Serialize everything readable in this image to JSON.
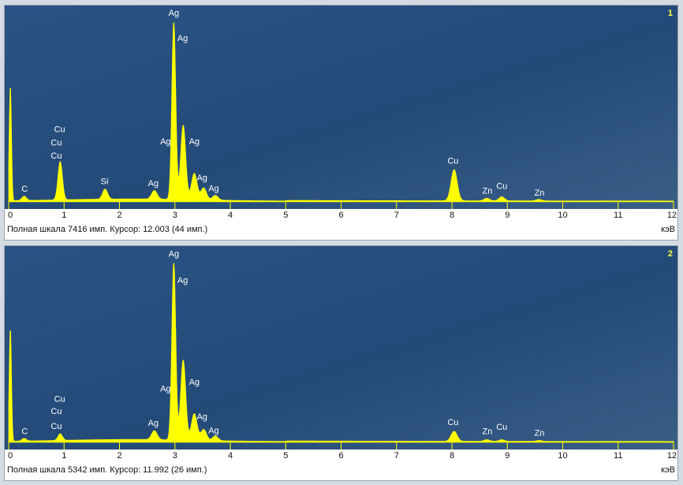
{
  "chart_data": [
    {
      "type": "line",
      "spectrum_number": "1",
      "status_text": "Полная шкала 7416 имп. Курсор: 12.003  (44 имп.)",
      "unit_label": "кэВ",
      "xlim": [
        0,
        12
      ],
      "x_ticks": [
        "0",
        "1",
        "2",
        "3",
        "4",
        "5",
        "6",
        "7",
        "8",
        "9",
        "10",
        "11",
        "12"
      ],
      "ylim": [
        0,
        7416
      ],
      "background_color": "#244a78",
      "fill_color": "#ffff00",
      "peaks": [
        {
          "x": 0.03,
          "y": 4800,
          "w": 0.02
        },
        {
          "x": 0.28,
          "y": 180,
          "w": 0.04
        },
        {
          "x": 0.93,
          "y": 1600,
          "w": 0.04
        },
        {
          "x": 1.74,
          "y": 420,
          "w": 0.045
        },
        {
          "x": 2.63,
          "y": 360,
          "w": 0.05
        },
        {
          "x": 2.98,
          "y": 7416,
          "w": 0.035
        },
        {
          "x": 3.15,
          "y": 3100,
          "w": 0.045
        },
        {
          "x": 3.35,
          "y": 1100,
          "w": 0.05
        },
        {
          "x": 3.52,
          "y": 500,
          "w": 0.05
        },
        {
          "x": 3.73,
          "y": 200,
          "w": 0.05
        },
        {
          "x": 8.04,
          "y": 1300,
          "w": 0.055
        },
        {
          "x": 8.63,
          "y": 110,
          "w": 0.05
        },
        {
          "x": 8.9,
          "y": 170,
          "w": 0.05
        },
        {
          "x": 9.57,
          "y": 60,
          "w": 0.05
        }
      ],
      "labels": [
        {
          "text": "Ag",
          "x": 2.98,
          "y": 7650
        },
        {
          "text": "Ag",
          "x": 3.14,
          "y": 6600
        },
        {
          "text": "Ag",
          "x": 2.83,
          "y": 2300
        },
        {
          "text": "Ag",
          "x": 3.35,
          "y": 2300
        },
        {
          "text": "Ag",
          "x": 3.49,
          "y": 780
        },
        {
          "text": "Ag",
          "x": 3.7,
          "y": 350
        },
        {
          "text": "Ag",
          "x": 2.61,
          "y": 560
        },
        {
          "text": "Cu",
          "x": 0.92,
          "y": 2800
        },
        {
          "text": "Cu",
          "x": 0.86,
          "y": 2250
        },
        {
          "text": "Cu",
          "x": 0.86,
          "y": 1700
        },
        {
          "text": "C",
          "x": 0.29,
          "y": 330
        },
        {
          "text": "Si",
          "x": 1.73,
          "y": 640
        },
        {
          "text": "Cu",
          "x": 8.02,
          "y": 1500
        },
        {
          "text": "Zn",
          "x": 8.64,
          "y": 250
        },
        {
          "text": "Cu",
          "x": 8.9,
          "y": 440
        },
        {
          "text": "Zn",
          "x": 9.58,
          "y": 160
        }
      ]
    },
    {
      "type": "line",
      "spectrum_number": "2",
      "status_text": "Полная шкала 5342 имп. Курсор: 11.992  (26 имп.)",
      "unit_label": "кэВ",
      "xlim": [
        0,
        12
      ],
      "x_ticks": [
        "0",
        "1",
        "2",
        "3",
        "4",
        "5",
        "6",
        "7",
        "8",
        "9",
        "10",
        "11",
        "12"
      ],
      "ylim": [
        0,
        5342
      ],
      "background_color": "#244a78",
      "fill_color": "#ffff00",
      "peaks": [
        {
          "x": 0.03,
          "y": 3400,
          "w": 0.02
        },
        {
          "x": 0.28,
          "y": 80,
          "w": 0.04
        },
        {
          "x": 0.93,
          "y": 200,
          "w": 0.04
        },
        {
          "x": 2.63,
          "y": 270,
          "w": 0.05
        },
        {
          "x": 2.98,
          "y": 5342,
          "w": 0.035
        },
        {
          "x": 3.15,
          "y": 2400,
          "w": 0.045
        },
        {
          "x": 3.35,
          "y": 800,
          "w": 0.05
        },
        {
          "x": 3.52,
          "y": 330,
          "w": 0.05
        },
        {
          "x": 3.73,
          "y": 140,
          "w": 0.05
        },
        {
          "x": 8.04,
          "y": 300,
          "w": 0.055
        },
        {
          "x": 8.63,
          "y": 50,
          "w": 0.05
        },
        {
          "x": 8.9,
          "y": 50,
          "w": 0.05
        },
        {
          "x": 9.57,
          "y": 30,
          "w": 0.05
        }
      ],
      "labels": [
        {
          "text": "Ag",
          "x": 2.98,
          "y": 5500
        },
        {
          "text": "Ag",
          "x": 3.14,
          "y": 4700
        },
        {
          "text": "Ag",
          "x": 2.83,
          "y": 1450
        },
        {
          "text": "Ag",
          "x": 3.35,
          "y": 1650
        },
        {
          "text": "Ag",
          "x": 3.49,
          "y": 620
        },
        {
          "text": "Ag",
          "x": 3.7,
          "y": 200
        },
        {
          "text": "Ag",
          "x": 2.61,
          "y": 430
        },
        {
          "text": "Cu",
          "x": 0.92,
          "y": 1150
        },
        {
          "text": "Cu",
          "x": 0.86,
          "y": 780
        },
        {
          "text": "Cu",
          "x": 0.86,
          "y": 330
        },
        {
          "text": "C",
          "x": 0.29,
          "y": 180
        },
        {
          "text": "Cu",
          "x": 8.02,
          "y": 450
        },
        {
          "text": "Zn",
          "x": 8.64,
          "y": 180
        },
        {
          "text": "Cu",
          "x": 8.9,
          "y": 310
        },
        {
          "text": "Zn",
          "x": 9.58,
          "y": 130
        }
      ]
    }
  ]
}
